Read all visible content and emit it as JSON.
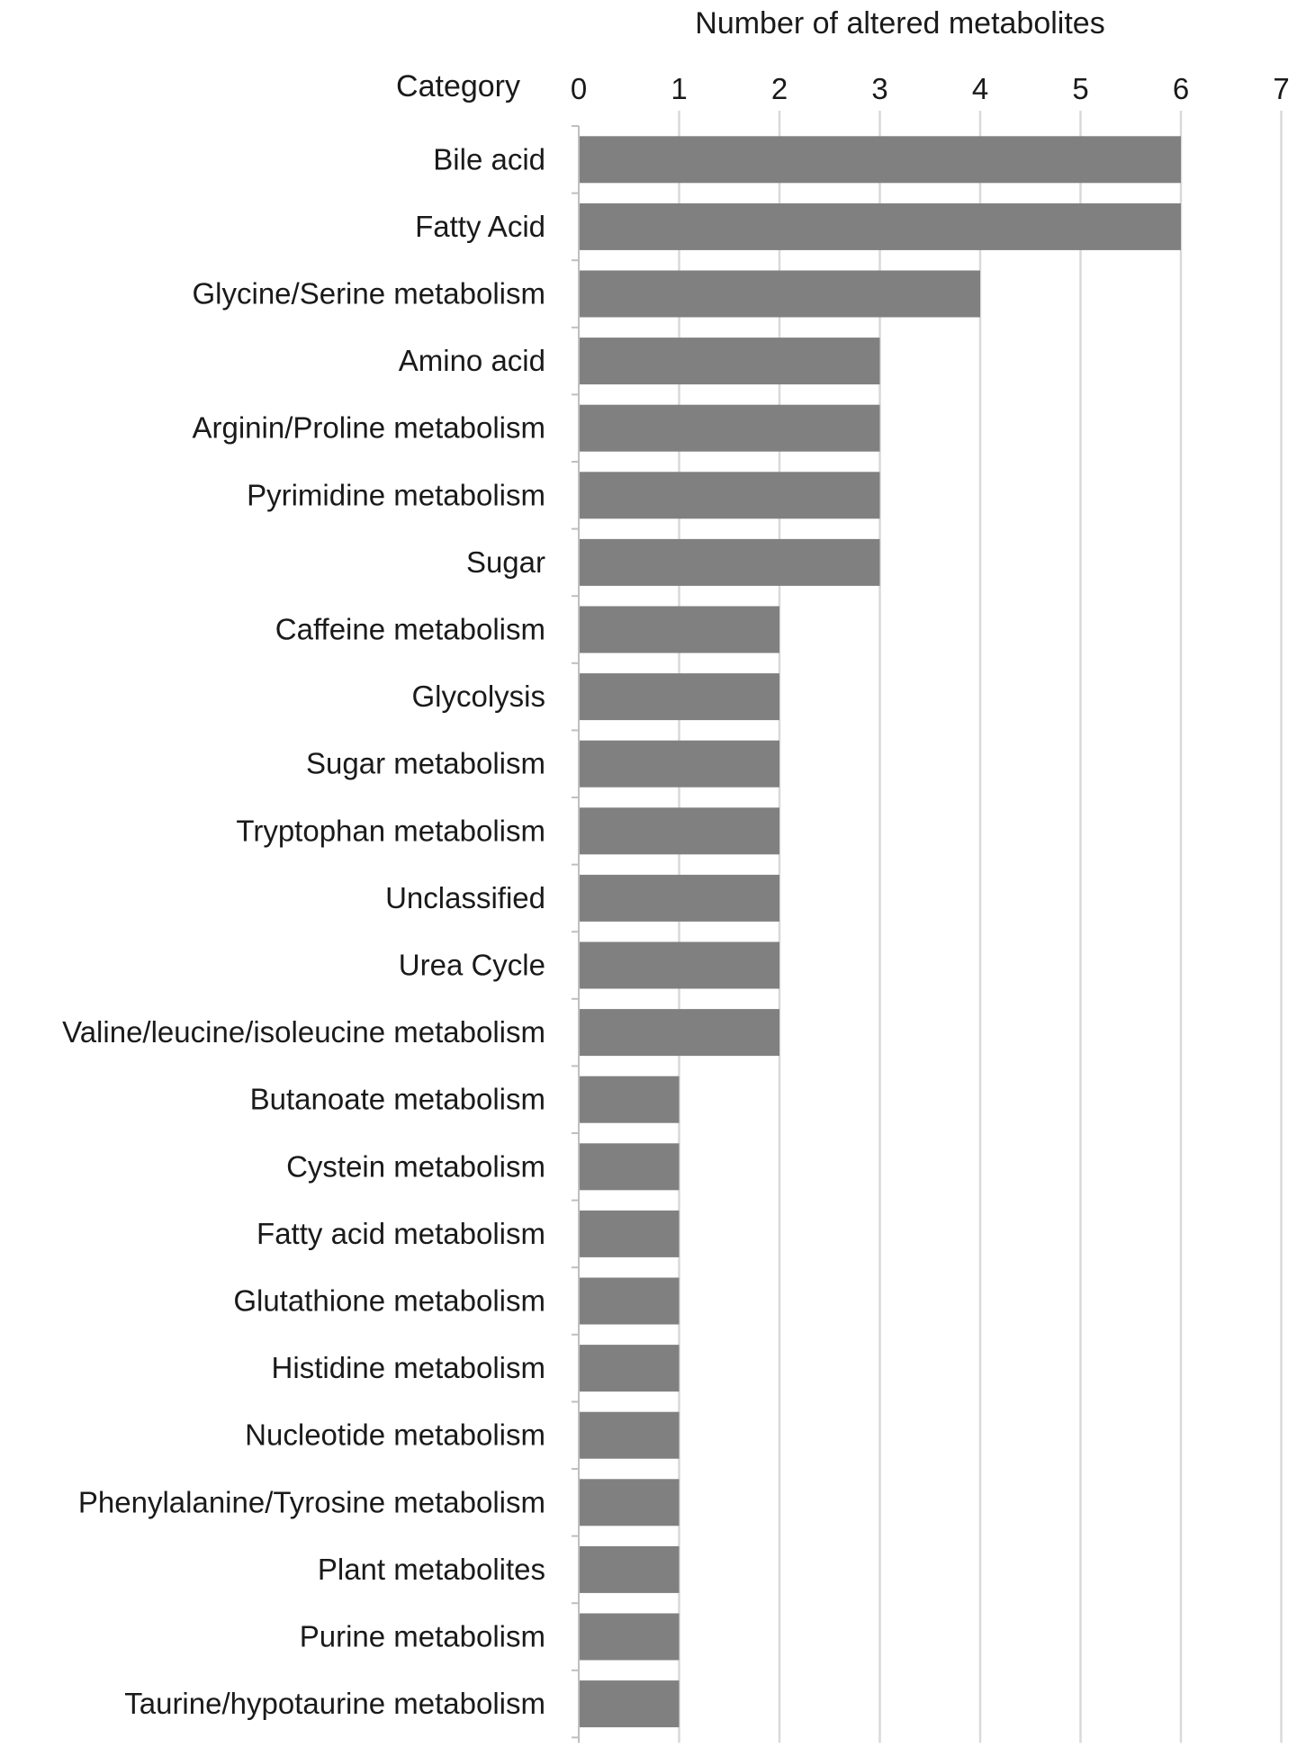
{
  "chart_data": {
    "type": "bar",
    "orientation": "horizontal",
    "xlabel": "Number of altered metabolites",
    "ylabel": "Category",
    "xlim": [
      0,
      7
    ],
    "xticks": [
      "0",
      "1",
      "2",
      "3",
      "4",
      "5",
      "6",
      "7"
    ],
    "x_axis_position": "top",
    "grid": true,
    "bar_color": "#808080",
    "categories": [
      "Bile acid",
      "Fatty Acid",
      "Glycine/Serine metabolism",
      "Amino acid",
      "Arginin/Proline metabolism",
      "Pyrimidine metabolism",
      "Sugar",
      "Caffeine metabolism",
      "Glycolysis",
      "Sugar metabolism",
      "Tryptophan metabolism",
      "Unclassified",
      "Urea Cycle",
      "Valine/leucine/isoleucine metabolism",
      "Butanoate metabolism",
      "Cystein metabolism",
      "Fatty acid metabolism",
      "Glutathione metabolism",
      "Histidine metabolism",
      "Nucleotide metabolism",
      "Phenylalanine/Tyrosine metabolism",
      "Plant metabolites",
      "Purine metabolism",
      "Taurine/hypotaurine metabolism"
    ],
    "values": [
      6,
      6,
      4,
      3,
      3,
      3,
      3,
      2,
      2,
      2,
      2,
      2,
      2,
      2,
      1,
      1,
      1,
      1,
      1,
      1,
      1,
      1,
      1,
      1
    ]
  }
}
